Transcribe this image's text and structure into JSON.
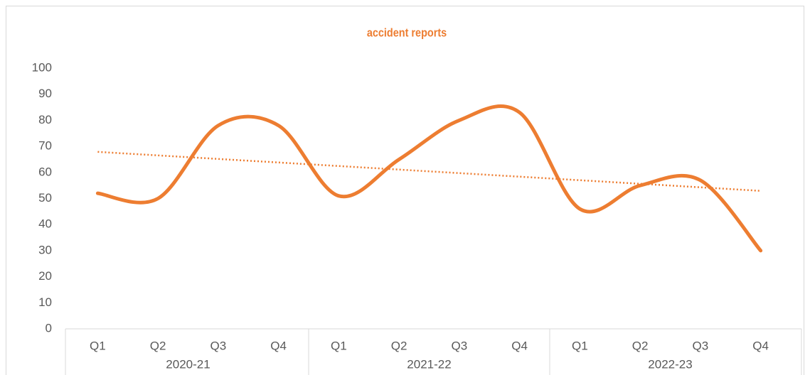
{
  "chart_data": {
    "type": "line",
    "title": "accident reports",
    "categories": [
      "Q1",
      "Q2",
      "Q3",
      "Q4",
      "Q1",
      "Q2",
      "Q3",
      "Q4",
      "Q1",
      "Q2",
      "Q3",
      "Q4"
    ],
    "category_groups": [
      "2020-21",
      "2021-22",
      "2022-23"
    ],
    "series": [
      {
        "color": "#ED7D31",
        "values": [
          52,
          50,
          78,
          78,
          51,
          65,
          80,
          83,
          46,
          55,
          57,
          30
        ]
      }
    ],
    "trendline": "linear",
    "ylim": [
      0,
      100
    ],
    "yticks": [
      0,
      10,
      20,
      30,
      40,
      50,
      60,
      70,
      80,
      90,
      100
    ],
    "grid": false
  }
}
